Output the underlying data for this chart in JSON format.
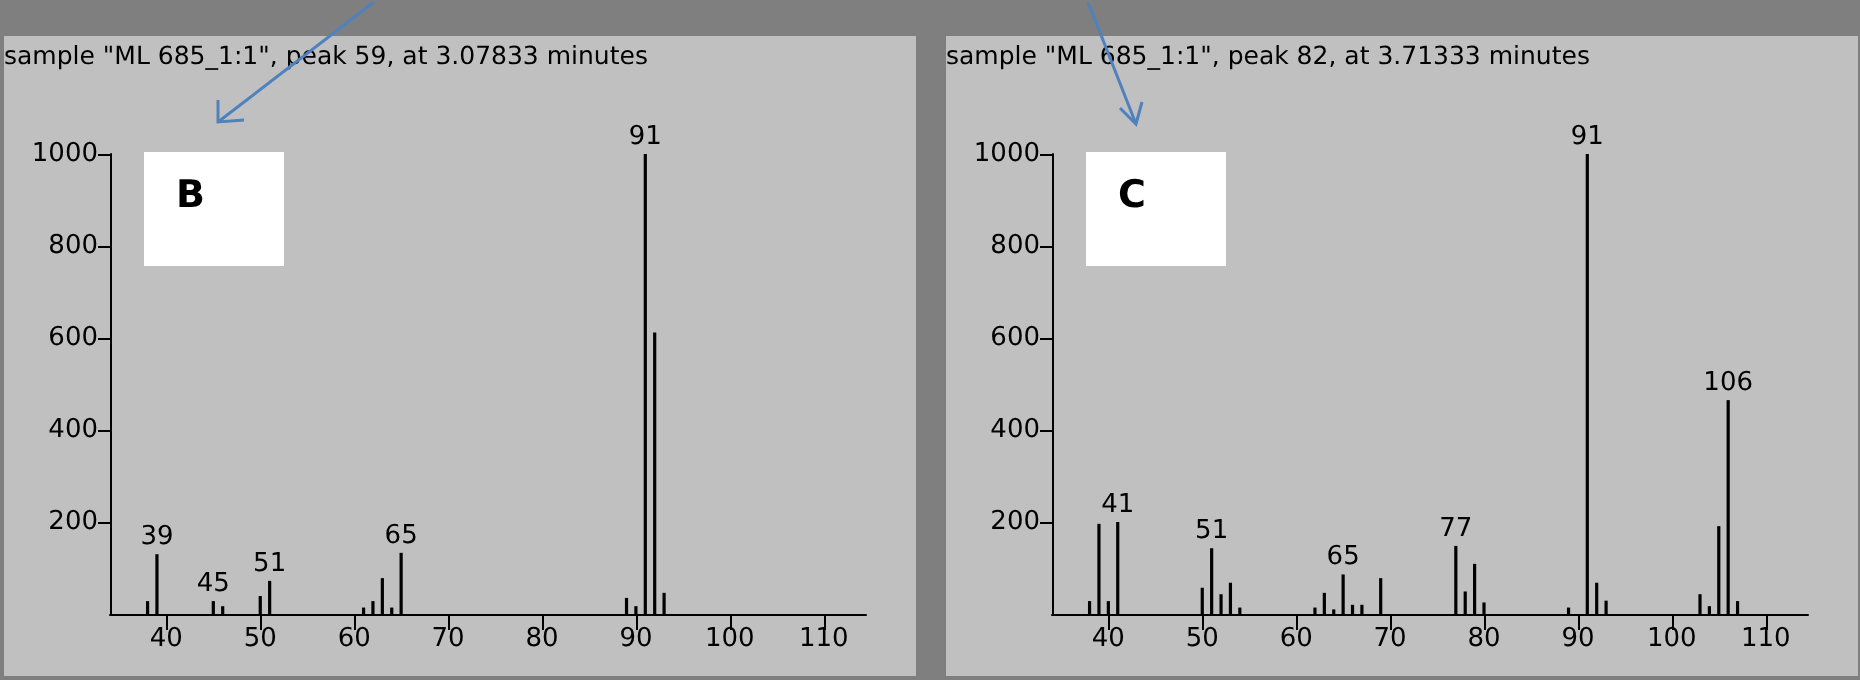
{
  "chart_data": [
    {
      "type": "bar",
      "title": "sample \"ML 685_1:1\", peak 59, at 3.07833 minutes",
      "color": "#000000",
      "annotations": [
        "B",
        {
          "text": "39",
          "x": 39,
          "y": 130
        },
        {
          "text": "45",
          "x": 45,
          "y": 28
        },
        {
          "text": "51",
          "x": 51,
          "y": 72
        },
        {
          "text": "65",
          "x": 65,
          "y": 133
        },
        {
          "text": "91",
          "x": 91,
          "y": 1000
        }
      ],
      "x": [
        38,
        39,
        45,
        46,
        50,
        51,
        61,
        62,
        63,
        64,
        65,
        89,
        90,
        91,
        92,
        93
      ],
      "values": [
        28,
        130,
        28,
        17,
        39,
        72,
        14,
        28,
        78,
        14,
        133,
        35,
        17,
        1000,
        612,
        46
      ],
      "xlim": [
        34,
        114.5
      ],
      "xticks": [
        40,
        50,
        60,
        70,
        80,
        90,
        100,
        110
      ],
      "ylim": [
        0,
        1000
      ],
      "yticks": [
        200,
        400,
        600,
        800,
        1000
      ]
    },
    {
      "type": "bar",
      "title": "sample \"ML 685_1:1\", peak 82, at 3.71333 minutes",
      "color": "#000000",
      "annotations": [
        "C",
        {
          "text": "41",
          "x": 41,
          "y": 200
        },
        {
          "text": "51",
          "x": 51,
          "y": 143
        },
        {
          "text": "65",
          "x": 65,
          "y": 86
        },
        {
          "text": "77",
          "x": 77,
          "y": 148
        },
        {
          "text": "91",
          "x": 91,
          "y": 1000
        },
        {
          "text": "106",
          "x": 106,
          "y": 465
        }
      ],
      "x": [
        38,
        39,
        40,
        41,
        50,
        51,
        52,
        53,
        54,
        62,
        63,
        64,
        65,
        66,
        67,
        69,
        77,
        78,
        79,
        80,
        89,
        91,
        92,
        93,
        103,
        104,
        105,
        106,
        107
      ],
      "values": [
        28,
        196,
        28,
        200,
        57,
        143,
        43,
        68,
        14,
        14,
        46,
        10,
        86,
        20,
        20,
        78,
        148,
        49,
        109,
        25,
        14,
        1000,
        68,
        29,
        43,
        17,
        191,
        465,
        28
      ],
      "xlim": [
        34,
        114.5
      ],
      "xticks": [
        40,
        50,
        60,
        70,
        80,
        90,
        100,
        110
      ],
      "ylim": [
        0,
        1000
      ],
      "yticks": [
        200,
        400,
        600,
        800,
        1000
      ]
    }
  ]
}
